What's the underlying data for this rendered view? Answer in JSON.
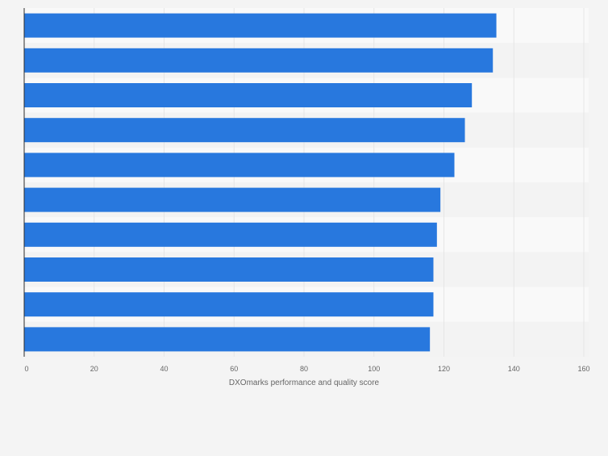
{
  "chart_data": {
    "type": "bar",
    "orientation": "horizontal",
    "categories": [
      "",
      "",
      "",
      "",
      "",
      "",
      "",
      "",
      "",
      ""
    ],
    "values": [
      135,
      134,
      128,
      126,
      123,
      119,
      118,
      117,
      117,
      116
    ],
    "title": "",
    "xlabel": "DXOmarks performance and quality score",
    "ylabel": "",
    "xlim": [
      0,
      160
    ],
    "xticks": [
      "0",
      "20",
      "40",
      "60",
      "80",
      "100",
      "120",
      "140",
      "160"
    ],
    "grid": true,
    "legend": "none",
    "colors": {
      "bar": "#2878de",
      "plot_band_light": "#f9f9f9",
      "plot_band_dark": "#f3f3f3",
      "gridline": "#e6e6e6",
      "axis_line": "#2b2b2b",
      "tick_label": "#666666",
      "axis_title": "#666666",
      "page_background": "#f4f4f4"
    }
  }
}
